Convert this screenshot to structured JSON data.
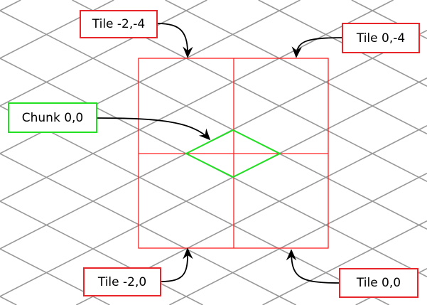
{
  "labels": {
    "tile_m2_m4": "Tile -2,-4",
    "tile_0_m4": "Tile 0,-4",
    "chunk_0_0": "Chunk 0,0",
    "tile_m2_0": "Tile -2,0",
    "tile_0_0": "Tile 0,0"
  },
  "colors": {
    "grid": "#999999",
    "tile": "#ff2020",
    "chunk": "#22e022",
    "arrow": "#000000"
  }
}
